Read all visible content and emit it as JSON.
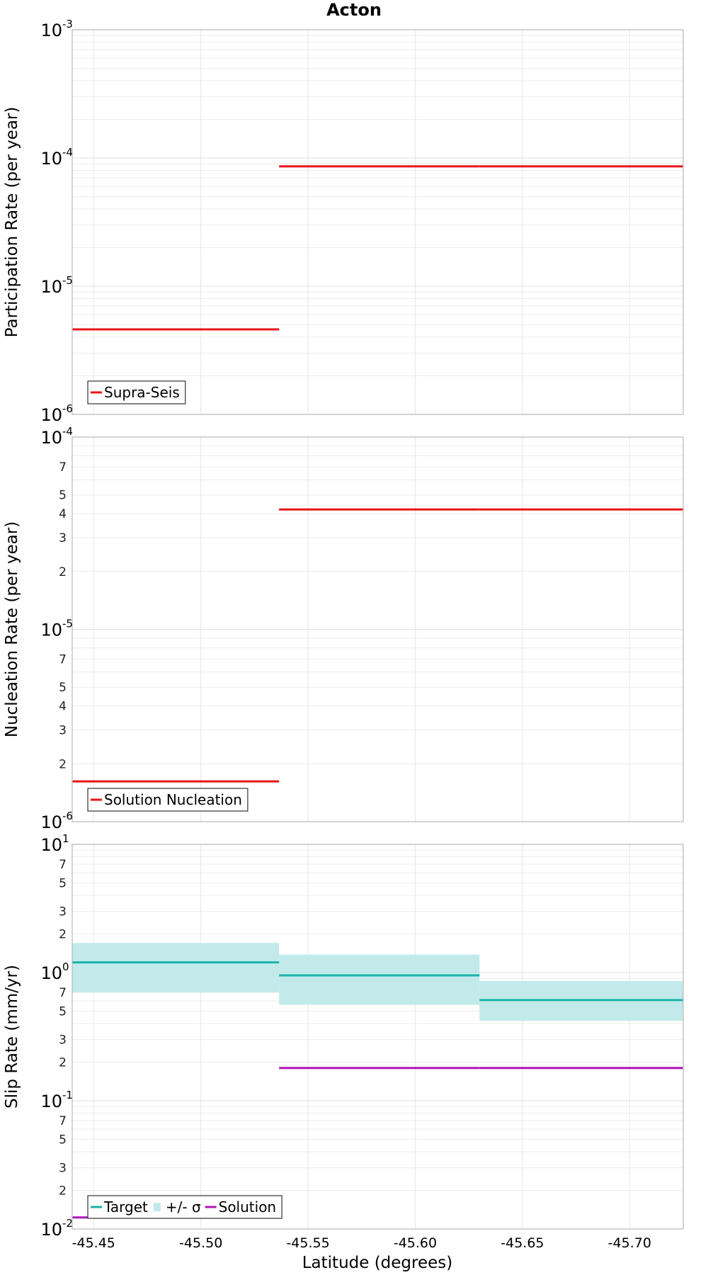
{
  "chart_data": {
    "type": "line",
    "title": "Acton",
    "xlabel": "Latitude (degrees)",
    "xlim": [
      -45.44,
      -45.725
    ],
    "x_ticks": [
      -45.45,
      -45.5,
      -45.55,
      -45.6,
      -45.65,
      -45.7
    ],
    "x_tick_labels": [
      "-45.45",
      "-45.50",
      "-45.55",
      "-45.60",
      "-45.65",
      "-45.70"
    ],
    "grid": true,
    "panels": [
      {
        "ylabel": "Participation Rate (per year)",
        "yscale": "log",
        "ylim": [
          1e-06,
          0.001
        ],
        "y_major": [
          {
            "value": 1e-06,
            "base": "10",
            "exp": "-6"
          },
          {
            "value": 1e-05,
            "base": "10",
            "exp": "-5"
          },
          {
            "value": 0.0001,
            "base": "10",
            "exp": "-4"
          },
          {
            "value": 0.001,
            "base": "10",
            "exp": "-3"
          }
        ],
        "y_minor_labels": [],
        "legend_position": "bottom-left",
        "series": [
          {
            "name": "Supra-Seis",
            "kind": "step",
            "color": "#e8141c",
            "segments": [
              {
                "x0": -45.44,
                "x1": -45.5365,
                "y": 4.6e-06
              },
              {
                "x0": -45.5365,
                "x1": -45.63,
                "y": 8.6e-05
              },
              {
                "x0": -45.63,
                "x1": -45.725,
                "y": 8.6e-05
              }
            ]
          }
        ]
      },
      {
        "ylabel": "Nucleation Rate (per year)",
        "yscale": "log",
        "ylim": [
          1e-06,
          0.0001
        ],
        "y_major": [
          {
            "value": 1e-06,
            "base": "10",
            "exp": "-6"
          },
          {
            "value": 1e-05,
            "base": "10",
            "exp": "-5"
          },
          {
            "value": 0.0001,
            "base": "10",
            "exp": "-4"
          }
        ],
        "y_minor_labels": [
          {
            "value": 2e-06,
            "label": "2"
          },
          {
            "value": 3e-06,
            "label": "3"
          },
          {
            "value": 4e-06,
            "label": "4"
          },
          {
            "value": 5e-06,
            "label": "5"
          },
          {
            "value": 7e-06,
            "label": "7"
          },
          {
            "value": 2e-05,
            "label": "2"
          },
          {
            "value": 3e-05,
            "label": "3"
          },
          {
            "value": 4e-05,
            "label": "4"
          },
          {
            "value": 5e-05,
            "label": "5"
          },
          {
            "value": 7e-05,
            "label": "7"
          }
        ],
        "legend_position": "bottom-left",
        "series": [
          {
            "name": "Solution Nucleation",
            "kind": "step",
            "color": "#e8141c",
            "segments": [
              {
                "x0": -45.44,
                "x1": -45.5365,
                "y": 1.62e-06
              },
              {
                "x0": -45.5365,
                "x1": -45.63,
                "y": 4.2e-05
              },
              {
                "x0": -45.63,
                "x1": -45.725,
                "y": 4.2e-05
              }
            ]
          }
        ]
      },
      {
        "ylabel": "Slip Rate (mm/yr)",
        "yscale": "log",
        "ylim": [
          0.01,
          10
        ],
        "y_major": [
          {
            "value": 0.01,
            "base": "10",
            "exp": "-2"
          },
          {
            "value": 0.1,
            "base": "10",
            "exp": "-1"
          },
          {
            "value": 1,
            "base": "10",
            "exp": "0"
          },
          {
            "value": 10,
            "base": "10",
            "exp": "1"
          }
        ],
        "y_minor_labels": [
          {
            "value": 0.02,
            "label": "2"
          },
          {
            "value": 0.03,
            "label": "3"
          },
          {
            "value": 0.05,
            "label": "5"
          },
          {
            "value": 0.07,
            "label": "7"
          },
          {
            "value": 0.2,
            "label": "2"
          },
          {
            "value": 0.3,
            "label": "3"
          },
          {
            "value": 0.5,
            "label": "5"
          },
          {
            "value": 0.7,
            "label": "7"
          },
          {
            "value": 2,
            "label": "2"
          },
          {
            "value": 3,
            "label": "3"
          },
          {
            "value": 5,
            "label": "5"
          },
          {
            "value": 7,
            "label": "7"
          }
        ],
        "legend_position": "bottom-left",
        "bands": [
          {
            "name": "+/- σ",
            "color": "#c2eaea",
            "segments": [
              {
                "x0": -45.44,
                "x1": -45.5365,
                "y0": 0.7,
                "y1": 1.7
              },
              {
                "x0": -45.5365,
                "x1": -45.63,
                "y0": 0.56,
                "y1": 1.38
              },
              {
                "x0": -45.63,
                "x1": -45.725,
                "y0": 0.42,
                "y1": 0.86
              }
            ]
          }
        ],
        "series": [
          {
            "name": "Target",
            "kind": "step",
            "color": "#1ab3aa",
            "segments": [
              {
                "x0": -45.44,
                "x1": -45.5365,
                "y": 1.2
              },
              {
                "x0": -45.5365,
                "x1": -45.63,
                "y": 0.95
              },
              {
                "x0": -45.63,
                "x1": -45.725,
                "y": 0.61
              }
            ]
          },
          {
            "name": "Solution",
            "kind": "step",
            "color": "#b015b9",
            "segments": [
              {
                "x0": -45.44,
                "x1": -45.5365,
                "y": 0.0123
              },
              {
                "x0": -45.5365,
                "x1": -45.63,
                "y": 0.18
              },
              {
                "x0": -45.63,
                "x1": -45.725,
                "y": 0.18
              }
            ]
          }
        ],
        "legend_order": [
          "Target",
          "+/- σ",
          "Solution"
        ]
      }
    ]
  }
}
